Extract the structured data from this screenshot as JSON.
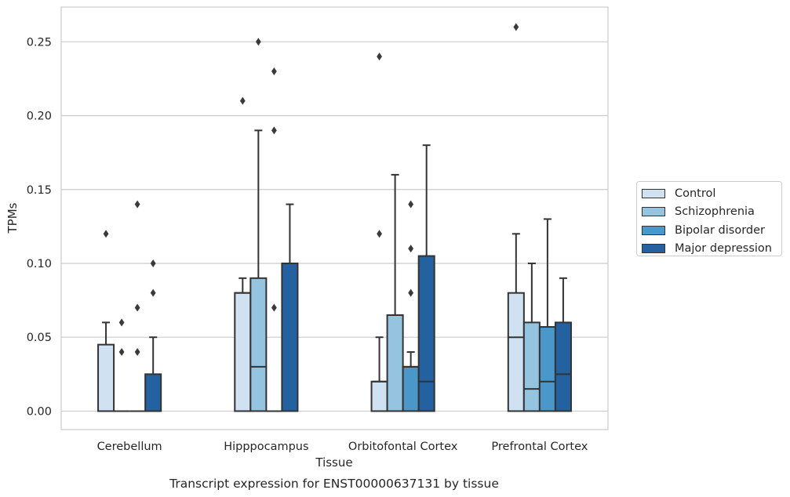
{
  "chart_data": {
    "type": "boxplot",
    "title": "Transcript expression for ENST00000637131 by tissue",
    "xlabel": "Tissue",
    "ylabel": "TPMs",
    "ylim": [
      -0.0125,
      0.2735
    ],
    "yticks": [
      "0.00",
      "0.05",
      "0.10",
      "0.15",
      "0.20",
      "0.25"
    ],
    "grid": "horizontal",
    "legend_position": "right",
    "categories": [
      "Cerebellum",
      "Hipppocampus",
      "Orbitofontal Cortex",
      "Prefrontal Cortex"
    ],
    "series": [
      {
        "name": "Control",
        "color": "#d0e1f2",
        "boxes": [
          {
            "q1": 0.0,
            "median": 0.0,
            "q3": 0.045,
            "whisker_low": 0.0,
            "whisker_high": 0.06,
            "outliers": [
              0.12
            ]
          },
          {
            "q1": 0.0,
            "median": 0.08,
            "q3": 0.08,
            "whisker_low": 0.0,
            "whisker_high": 0.09,
            "outliers": [
              0.21
            ]
          },
          {
            "q1": 0.0,
            "median": 0.02,
            "q3": 0.02,
            "whisker_low": 0.0,
            "whisker_high": 0.05,
            "outliers": [
              0.12,
              0.24
            ]
          },
          {
            "q1": 0.0,
            "median": 0.05,
            "q3": 0.08,
            "whisker_low": 0.0,
            "whisker_high": 0.12,
            "outliers": [
              0.26
            ]
          }
        ]
      },
      {
        "name": "Schizophrenia",
        "color": "#94c4df",
        "boxes": [
          {
            "q1": 0.0,
            "median": 0.0,
            "q3": 0.0,
            "whisker_low": 0.0,
            "whisker_high": 0.0,
            "outliers": [
              0.04,
              0.06
            ]
          },
          {
            "q1": 0.0,
            "median": 0.03,
            "q3": 0.09,
            "whisker_low": 0.0,
            "whisker_high": 0.19,
            "outliers": [
              0.25
            ]
          },
          {
            "q1": 0.0,
            "median": 0.065,
            "q3": 0.065,
            "whisker_low": 0.0,
            "whisker_high": 0.16,
            "outliers": []
          },
          {
            "q1": 0.0,
            "median": 0.015,
            "q3": 0.06,
            "whisker_low": 0.0,
            "whisker_high": 0.1,
            "outliers": []
          }
        ]
      },
      {
        "name": "Bipolar disorder",
        "color": "#4a98c9",
        "boxes": [
          {
            "q1": 0.0,
            "median": 0.0,
            "q3": 0.0,
            "whisker_low": 0.0,
            "whisker_high": 0.0,
            "outliers": [
              0.04,
              0.07,
              0.14
            ]
          },
          {
            "q1": 0.0,
            "median": 0.0,
            "q3": 0.0,
            "whisker_low": 0.0,
            "whisker_high": 0.0,
            "outliers": [
              0.07,
              0.19,
              0.23
            ]
          },
          {
            "q1": 0.0,
            "median": 0.03,
            "q3": 0.03,
            "whisker_low": 0.0,
            "whisker_high": 0.04,
            "outliers": [
              0.08,
              0.11,
              0.14
            ]
          },
          {
            "q1": 0.0,
            "median": 0.02,
            "q3": 0.057,
            "whisker_low": 0.0,
            "whisker_high": 0.13,
            "outliers": []
          }
        ]
      },
      {
        "name": "Major depression",
        "color": "#2361a1",
        "boxes": [
          {
            "q1": 0.0,
            "median": 0.0,
            "q3": 0.025,
            "whisker_low": 0.0,
            "whisker_high": 0.05,
            "outliers": [
              0.08,
              0.1
            ]
          },
          {
            "q1": 0.0,
            "median": 0.1,
            "q3": 0.1,
            "whisker_low": 0.0,
            "whisker_high": 0.14,
            "outliers": []
          },
          {
            "q1": 0.0,
            "median": 0.02,
            "q3": 0.105,
            "whisker_low": 0.0,
            "whisker_high": 0.18,
            "outliers": []
          },
          {
            "q1": 0.0,
            "median": 0.025,
            "q3": 0.06,
            "whisker_low": 0.0,
            "whisker_high": 0.09,
            "outliers": []
          }
        ]
      }
    ]
  }
}
